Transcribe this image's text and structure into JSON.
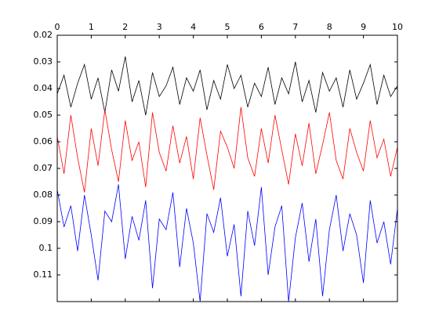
{
  "chart_data": {
    "type": "line",
    "x": [
      0,
      0.2,
      0.4,
      0.6,
      0.8,
      1,
      1.2,
      1.4,
      1.6,
      1.8,
      2,
      2.2,
      2.4,
      2.6,
      2.8,
      3,
      3.2,
      3.4,
      3.6,
      3.8,
      4,
      4.2,
      4.4,
      4.6,
      4.8,
      5,
      5.2,
      5.4,
      5.6,
      5.8,
      6,
      6.2,
      6.4,
      6.6,
      6.8,
      7,
      7.2,
      7.4,
      7.6,
      7.8,
      8,
      8.2,
      8.4,
      8.6,
      8.8,
      9,
      9.2,
      9.4,
      9.6,
      9.8,
      10
    ],
    "series": [
      {
        "color": "#000000",
        "values": [
          0.042,
          0.035,
          0.047,
          0.038,
          0.031,
          0.044,
          0.036,
          0.049,
          0.033,
          0.041,
          0.028,
          0.045,
          0.037,
          0.05,
          0.034,
          0.043,
          0.039,
          0.032,
          0.046,
          0.036,
          0.041,
          0.033,
          0.048,
          0.037,
          0.044,
          0.031,
          0.04,
          0.035,
          0.047,
          0.038,
          0.043,
          0.032,
          0.046,
          0.036,
          0.042,
          0.03,
          0.045,
          0.037,
          0.049,
          0.034,
          0.041,
          0.036,
          0.047,
          0.033,
          0.044,
          0.038,
          0.031,
          0.046,
          0.035,
          0.043,
          0.039
        ]
      },
      {
        "color": "#ff0000",
        "values": [
          0.058,
          0.072,
          0.05,
          0.066,
          0.079,
          0.055,
          0.069,
          0.048,
          0.063,
          0.075,
          0.052,
          0.067,
          0.06,
          0.077,
          0.049,
          0.064,
          0.071,
          0.054,
          0.068,
          0.058,
          0.074,
          0.051,
          0.065,
          0.078,
          0.056,
          0.062,
          0.07,
          0.047,
          0.066,
          0.073,
          0.055,
          0.068,
          0.05,
          0.063,
          0.076,
          0.057,
          0.069,
          0.053,
          0.072,
          0.061,
          0.049,
          0.067,
          0.074,
          0.055,
          0.064,
          0.071,
          0.052,
          0.066,
          0.059,
          0.073,
          0.062
        ]
      },
      {
        "color": "#0000ff",
        "values": [
          0.078,
          0.092,
          0.084,
          0.101,
          0.08,
          0.095,
          0.112,
          0.086,
          0.09,
          0.076,
          0.104,
          0.088,
          0.097,
          0.082,
          0.115,
          0.089,
          0.093,
          0.079,
          0.107,
          0.085,
          0.098,
          0.12,
          0.087,
          0.094,
          0.081,
          0.103,
          0.091,
          0.118,
          0.086,
          0.099,
          0.077,
          0.11,
          0.092,
          0.084,
          0.12,
          0.096,
          0.083,
          0.105,
          0.089,
          0.118,
          0.093,
          0.08,
          0.101,
          0.087,
          0.095,
          0.113,
          0.082,
          0.098,
          0.09,
          0.106,
          0.085
        ]
      }
    ],
    "xlim": [
      0,
      10
    ],
    "xticks": [
      0,
      1,
      2,
      3,
      4,
      5,
      6,
      7,
      8,
      9,
      10
    ],
    "ylim": [
      0.02,
      0.12
    ],
    "yticks": [
      0.02,
      0.03,
      0.04,
      0.05,
      0.06,
      0.07,
      0.08,
      0.09,
      0.1,
      0.11
    ],
    "y_reverse": true,
    "x_axis_location": "top",
    "grid": false
  }
}
